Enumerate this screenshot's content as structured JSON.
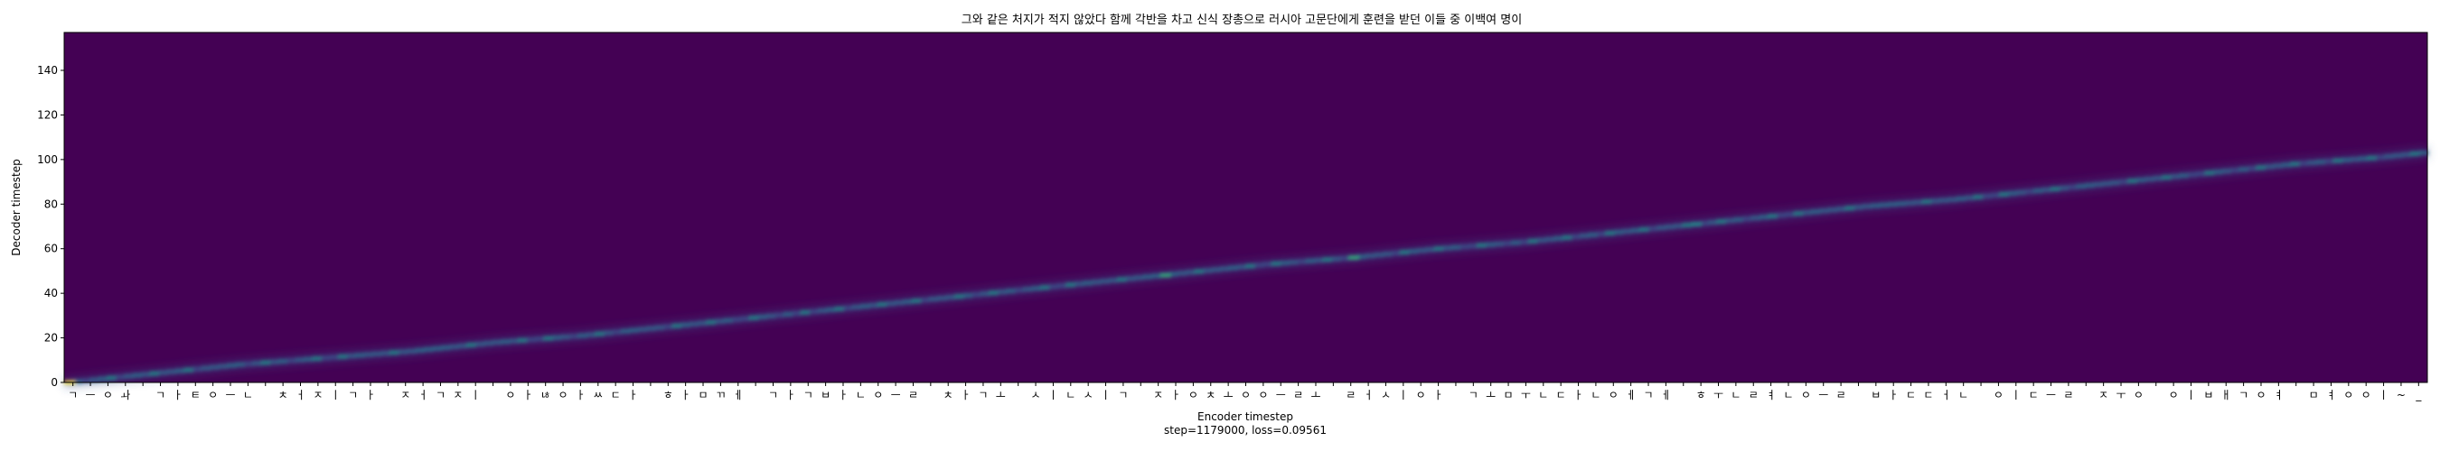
{
  "chart_data": {
    "type": "heatmap",
    "title": "그와 같은 처지가 적지 않았다 함께 각반을 차고 신식 장총으로 러시아 고문단에게 훈련을 받던 이들 중 이백여 명이",
    "xlabel": "Encoder timestep",
    "ylabel": "Decoder timestep",
    "footer": "step=1179000, loss=0.09561",
    "ylim": [
      0,
      157
    ],
    "xlim": [
      0,
      157
    ],
    "yticks": [
      0,
      20,
      40,
      60,
      80,
      100,
      120,
      140
    ],
    "colormap": "viridis",
    "background_color": "#440154",
    "alignment_path": [
      [
        0,
        0
      ],
      [
        10,
        4
      ],
      [
        20,
        8
      ],
      [
        30,
        11
      ],
      [
        40,
        14
      ],
      [
        50,
        18
      ],
      [
        60,
        21
      ],
      [
        70,
        25
      ],
      [
        80,
        29
      ],
      [
        90,
        33
      ],
      [
        100,
        37
      ],
      [
        110,
        41
      ],
      [
        120,
        45
      ],
      [
        130,
        49
      ],
      [
        140,
        53
      ],
      [
        150,
        56
      ],
      [
        160,
        60
      ],
      [
        170,
        63
      ],
      [
        180,
        67
      ],
      [
        190,
        71
      ],
      [
        200,
        75
      ],
      [
        210,
        79
      ],
      [
        220,
        82
      ],
      [
        230,
        86
      ],
      [
        240,
        90
      ],
      [
        250,
        94
      ],
      [
        260,
        98
      ],
      [
        270,
        101
      ],
      [
        275,
        103
      ]
    ],
    "encoder_length": 276,
    "decoder_length": 104,
    "x_tick_labels": [
      "ㄱ",
      "ㅡ",
      "ㅇ",
      "ㅘ",
      " ",
      "ㄱ",
      "ㅏ",
      "ㅌ",
      "ㅇ",
      "ㅡ",
      "ㄴ",
      " ",
      "ㅊ",
      "ㅓ",
      "ㅈ",
      "ㅣ",
      "ㄱ",
      "ㅏ",
      " ",
      "ㅈ",
      "ㅓ",
      "ㄱ",
      "ㅈ",
      "ㅣ",
      " ",
      "ㅇ",
      "ㅏ",
      "ㄶ",
      "ㅇ",
      "ㅏ",
      "ㅆ",
      "ㄷ",
      "ㅏ",
      " ",
      "ㅎ",
      "ㅏ",
      "ㅁ",
      "ㄲ",
      "ㅔ",
      " ",
      "ㄱ",
      "ㅏ",
      "ㄱ",
      "ㅂ",
      "ㅏ",
      "ㄴ",
      "ㅇ",
      "ㅡ",
      "ㄹ",
      " ",
      "ㅊ",
      "ㅏ",
      "ㄱ",
      "ㅗ",
      " ",
      "ㅅ",
      "ㅣ",
      "ㄴ",
      "ㅅ",
      "ㅣ",
      "ㄱ",
      " ",
      "ㅈ",
      "ㅏ",
      "ㅇ",
      "ㅊ",
      "ㅗ",
      "ㅇ",
      "ㅇ",
      "ㅡ",
      "ㄹ",
      "ㅗ",
      " ",
      "ㄹ",
      "ㅓ",
      "ㅅ",
      "ㅣ",
      "ㅇ",
      "ㅏ",
      " ",
      "ㄱ",
      "ㅗ",
      "ㅁ",
      "ㅜ",
      "ㄴ",
      "ㄷ",
      "ㅏ",
      "ㄴ",
      "ㅇ",
      "ㅔ",
      "ㄱ",
      "ㅔ",
      " ",
      "ㅎ",
      "ㅜ",
      "ㄴ",
      "ㄹ",
      "ㅕ",
      "ㄴ",
      "ㅇ",
      "ㅡ",
      "ㄹ",
      " ",
      "ㅂ",
      "ㅏ",
      "ㄷ",
      "ㄷ",
      "ㅓ",
      "ㄴ",
      " ",
      "ㅇ",
      "ㅣ",
      "ㄷ",
      "ㅡ",
      "ㄹ",
      " ",
      "ㅈ",
      "ㅜ",
      "ㅇ",
      " ",
      "ㅇ",
      "ㅣ",
      "ㅂ",
      "ㅐ",
      "ㄱ",
      "ㅇ",
      "ㅕ",
      " ",
      "ㅁ",
      "ㅕ",
      "ㅇ",
      "ㅇ",
      "ㅣ",
      "~",
      "_"
    ]
  }
}
